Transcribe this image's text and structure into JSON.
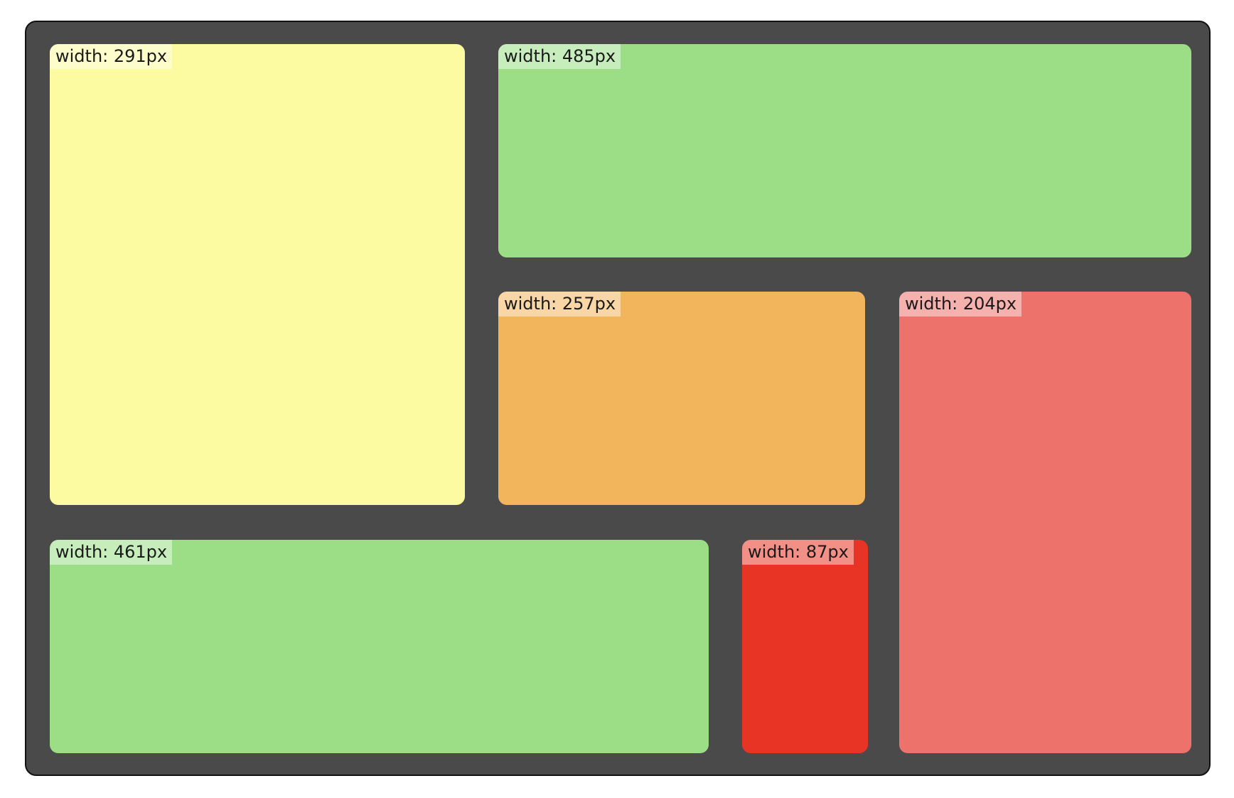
{
  "boxes": [
    {
      "id": "box-yellow",
      "label": "width: 291px",
      "color": "#fcfba2"
    },
    {
      "id": "box-green-top",
      "label": "width: 485px",
      "color": "#9cde85"
    },
    {
      "id": "box-orange",
      "label": "width: 257px",
      "color": "#f2b55c"
    },
    {
      "id": "box-salmon",
      "label": "width: 204px",
      "color": "#ed726b"
    },
    {
      "id": "box-green-bottom",
      "label": "width: 461px",
      "color": "#9cde85"
    },
    {
      "id": "box-red",
      "label": "width: 87px",
      "color": "#e83424"
    }
  ]
}
